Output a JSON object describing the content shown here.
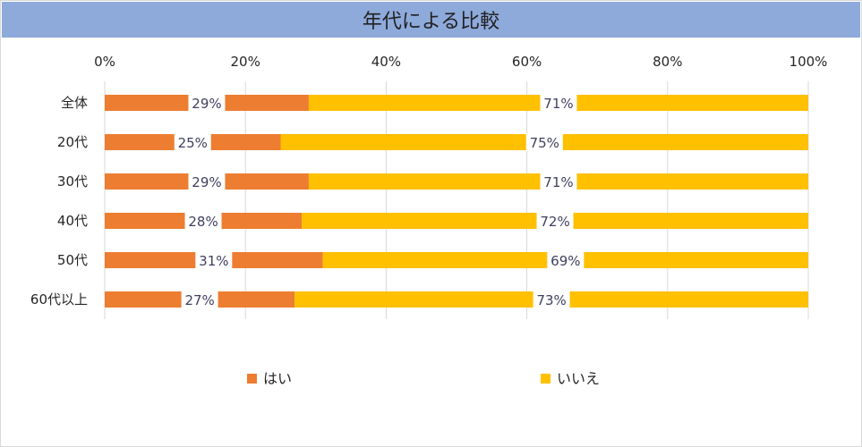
{
  "chart_data": {
    "type": "bar",
    "orientation": "horizontal",
    "stacked": "percent",
    "title": "年代による比較",
    "categories": [
      "全体",
      "20代",
      "30代",
      "40代",
      "50代",
      "60代以上"
    ],
    "series": [
      {
        "name": "はい",
        "color": "#ed7d31",
        "values": [
          29,
          25,
          29,
          28,
          31,
          27
        ],
        "labels": [
          "29%",
          "25%",
          "29%",
          "28%",
          "31%",
          "27%"
        ]
      },
      {
        "name": "いいえ",
        "color": "#ffc000",
        "values": [
          71,
          75,
          71,
          72,
          69,
          73
        ],
        "labels": [
          "71%",
          "75%",
          "71%",
          "72%",
          "69%",
          "73%"
        ]
      }
    ],
    "xlim": [
      0,
      100
    ],
    "xticks": [
      "0%",
      "20%",
      "40%",
      "60%",
      "80%",
      "100%"
    ],
    "grid": true,
    "legend_position": "bottom"
  }
}
